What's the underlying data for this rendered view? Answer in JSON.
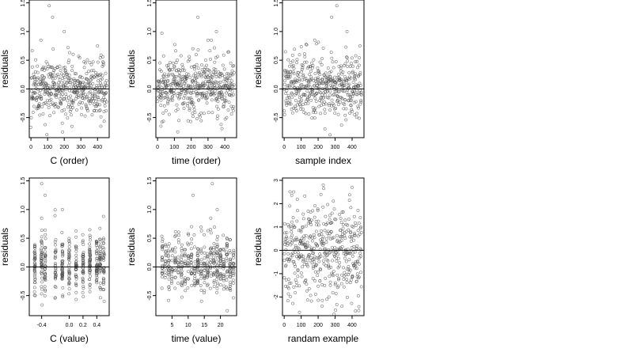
{
  "panels": [
    {
      "type": "scatter",
      "xlabel": "C (order)",
      "ylabel": "residuals",
      "xlim": [
        -10,
        470
      ],
      "ylim": [
        -0.85,
        1.55
      ],
      "xticks": [
        0,
        100,
        200,
        300,
        400
      ],
      "xtick_labels": [
        "0",
        "100",
        "200",
        "300",
        "400"
      ],
      "yticks": [
        -0.5,
        0.0,
        0.5,
        1.0,
        1.5
      ],
      "ytick_labels": [
        "-0.5",
        "0.0",
        "0.5",
        "1.0",
        "1.5"
      ],
      "hline": 0,
      "n_points": 460,
      "highlight_points": [
        [
          60,
          0.85
        ],
        [
          110,
          1.45
        ],
        [
          130,
          1.25
        ],
        [
          200,
          1.0
        ],
        [
          400,
          0.75
        ],
        [
          420,
          -0.65
        ],
        [
          190,
          -0.75
        ]
      ]
    },
    {
      "type": "scatter",
      "xlabel": "time (order)",
      "ylabel": "residuals",
      "xlim": [
        -10,
        470
      ],
      "ylim": [
        -0.85,
        1.55
      ],
      "xticks": [
        0,
        100,
        200,
        300,
        400
      ],
      "xtick_labels": [
        "0",
        "100",
        "200",
        "300",
        "400"
      ],
      "yticks": [
        -0.5,
        0.0,
        0.5,
        1.0,
        1.5
      ],
      "ytick_labels": [
        "-0.5",
        "0.0",
        "0.5",
        "1.0",
        "1.5"
      ],
      "hline": 0,
      "n_points": 460,
      "highlight_points": [
        [
          240,
          1.25
        ],
        [
          300,
          0.85
        ],
        [
          320,
          0.85
        ],
        [
          350,
          1.0
        ],
        [
          210,
          0.7
        ],
        [
          20,
          -0.65
        ],
        [
          120,
          -0.75
        ]
      ]
    },
    {
      "type": "scatter",
      "xlabel": "sample index",
      "ylabel": "residuals",
      "xlim": [
        -10,
        470
      ],
      "ylim": [
        -0.85,
        1.55
      ],
      "xticks": [
        0,
        100,
        200,
        300,
        400
      ],
      "xtick_labels": [
        "0",
        "100",
        "200",
        "300",
        "400"
      ],
      "yticks": [
        -0.5,
        0.0,
        0.5,
        1.0,
        1.5
      ],
      "ytick_labels": [
        "-0.5",
        "0.0",
        "0.5",
        "1.0",
        "1.5"
      ],
      "hline": 0,
      "n_points": 460,
      "highlight_points": [
        [
          310,
          1.45
        ],
        [
          280,
          1.25
        ],
        [
          370,
          1.0
        ],
        [
          180,
          0.85
        ],
        [
          240,
          -0.7
        ],
        [
          270,
          -0.8
        ]
      ]
    },
    {
      "type": "scatter",
      "xlabel": "C (value)",
      "ylabel": "residuals",
      "xlim": [
        -0.58,
        0.58
      ],
      "ylim": [
        -0.85,
        1.55
      ],
      "xticks": [
        -0.4,
        0.0,
        0.2,
        0.4
      ],
      "xtick_labels": [
        "-0.4",
        "0.0",
        "0.2",
        "0.4"
      ],
      "yticks": [
        -0.5,
        0.0,
        0.5,
        1.0,
        1.5
      ],
      "ytick_labels": [
        "-0.5",
        "0.0",
        "0.5",
        "1.0",
        "1.5"
      ],
      "hline": 0,
      "n_points": 460,
      "x_clusters": [
        -0.5,
        -0.4,
        -0.35,
        -0.2,
        -0.1,
        0.0,
        0.1,
        0.2,
        0.3,
        0.4,
        0.45,
        0.5
      ],
      "highlight_points": [
        [
          -0.4,
          1.45
        ],
        [
          -0.35,
          1.25
        ],
        [
          -0.1,
          1.0
        ],
        [
          -0.4,
          0.85
        ]
      ]
    },
    {
      "type": "scatter",
      "xlabel": "time (value)",
      "ylabel": "residuals",
      "xlim": [
        0,
        25
      ],
      "ylim": [
        -0.85,
        1.55
      ],
      "xticks": [
        5,
        10,
        15,
        20
      ],
      "xtick_labels": [
        "5",
        "10",
        "15",
        "20"
      ],
      "yticks": [
        -0.5,
        0.0,
        0.5,
        1.0,
        1.5
      ],
      "ytick_labels": [
        "-0.5",
        "0.0",
        "0.5",
        "1.0",
        "1.5"
      ],
      "hline": 0,
      "n_points": 460,
      "x_clusters": [
        2,
        3,
        4,
        5,
        6,
        7,
        8,
        9,
        10,
        11,
        12,
        13,
        14,
        15,
        16,
        17,
        18,
        19,
        20,
        21,
        22,
        23,
        24
      ],
      "highlight_points": [
        [
          11.5,
          1.25
        ],
        [
          17.5,
          1.45
        ],
        [
          19,
          1.0
        ],
        [
          17,
          0.85
        ]
      ]
    },
    {
      "type": "scatter",
      "xlabel": "randam example",
      "ylabel": "residuals",
      "xlim": [
        -10,
        470
      ],
      "ylim": [
        -2.8,
        3.1
      ],
      "xticks": [
        0,
        100,
        200,
        300,
        400
      ],
      "xtick_labels": [
        "0",
        "100",
        "200",
        "300",
        "400"
      ],
      "yticks": [
        -2,
        -1,
        0,
        1,
        2,
        3
      ],
      "ytick_labels": [
        "-2",
        "-1",
        "0",
        "1",
        "2",
        "3"
      ],
      "hline": 0,
      "n_points": 460,
      "highlight_points": [
        [
          230,
          2.8
        ],
        [
          400,
          2.7
        ],
        [
          340,
          -2.4
        ],
        [
          420,
          -2.6
        ]
      ]
    }
  ],
  "colors": {
    "point": "#4d4d4d",
    "axis": "#000000",
    "background": "#ffffff"
  }
}
